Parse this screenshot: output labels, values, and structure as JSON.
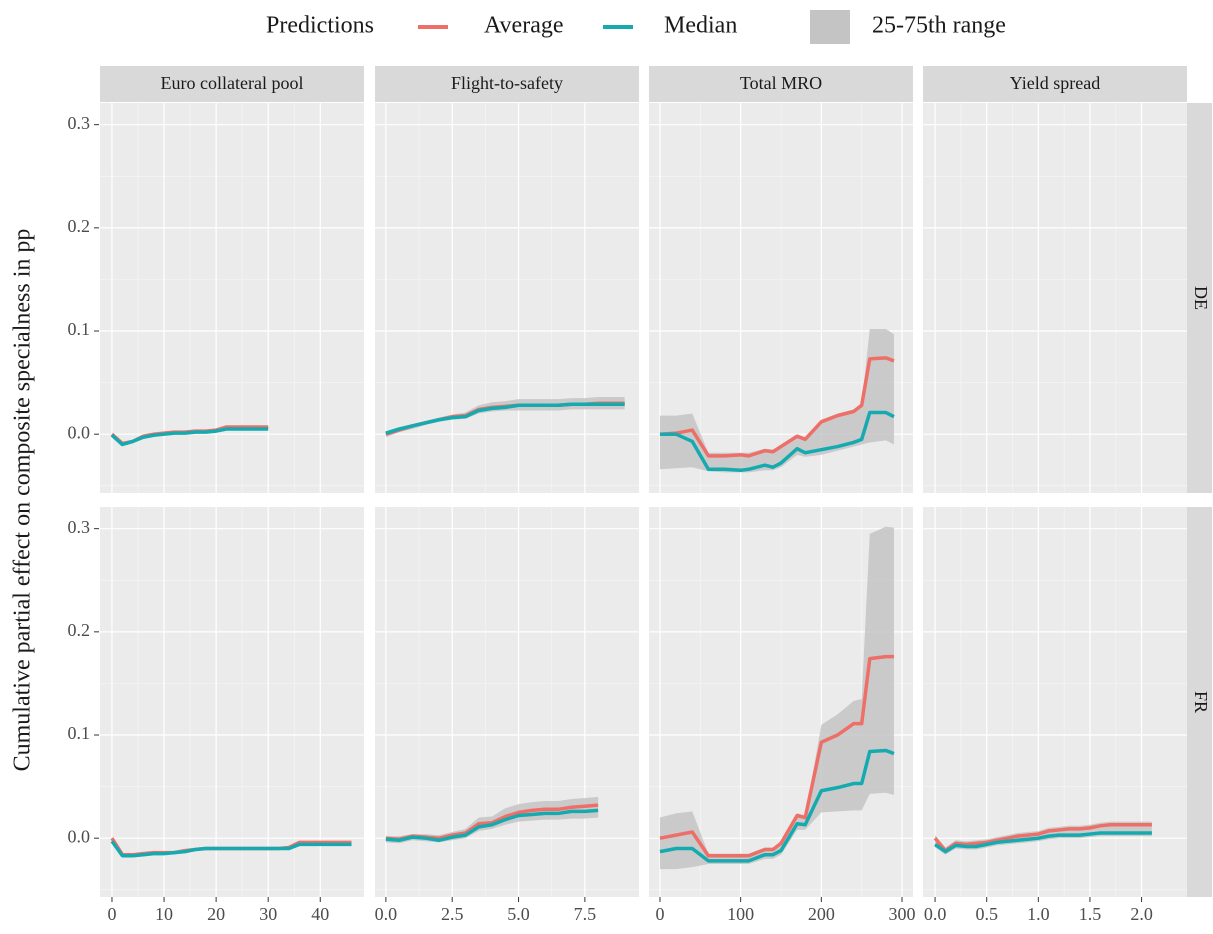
{
  "chart_data": {
    "type": "line",
    "legend_title": "Predictions",
    "legend": [
      {
        "name": "Average",
        "color": "#ee6f68"
      },
      {
        "name": "Median",
        "color": "#14aab0"
      },
      {
        "name": "25-75th range",
        "color": "#c4c4c4"
      }
    ],
    "y_label": "Cumulative partial effect on composite specialness in pp",
    "ylim": [
      -0.057,
      0.321
    ],
    "yticks": [
      {
        "value": 0,
        "label": "0.0"
      },
      0.1,
      0.2,
      0.3
    ],
    "grid": true,
    "columns": [
      {
        "title": "Euro collateral pool",
        "xlim": [
          -2.3,
          48.4
        ],
        "xticks": [
          0,
          10,
          20,
          30,
          40
        ]
      },
      {
        "title": "Flight-to-safety",
        "xlim": [
          -0.41,
          9.54
        ],
        "xticks": [
          {
            "value": 0,
            "label": "0.0"
          },
          2.5,
          {
            "value": 5,
            "label": "5.0"
          },
          7.5
        ]
      },
      {
        "title": "Total MRO",
        "xlim": [
          -13.6,
          313.6
        ],
        "xticks": [
          0,
          100,
          200,
          300
        ]
      },
      {
        "title": "Yield spread",
        "xlim": [
          -0.117,
          2.44
        ],
        "xticks": [
          {
            "value": 0,
            "label": "0.0"
          },
          0.5,
          {
            "value": 1,
            "label": "1.0"
          },
          1.5,
          {
            "value": 2,
            "label": "2.0"
          }
        ]
      }
    ],
    "rows": [
      {
        "label": "DE",
        "panels": [
          {
            "x": [
              0,
              2,
              4,
              6,
              8,
              10,
              12,
              14,
              16,
              18,
              20,
              22,
              24,
              26,
              28,
              30
            ],
            "average": [
              0.0,
              -0.009,
              -0.007,
              -0.002,
              0.0,
              0.001,
              0.002,
              0.002,
              0.003,
              0.003,
              0.004,
              0.007,
              0.007,
              0.007,
              0.007,
              0.007
            ],
            "median": [
              -0.001,
              -0.01,
              -0.007,
              -0.003,
              -0.001,
              0.0,
              0.001,
              0.001,
              0.002,
              0.002,
              0.003,
              0.005,
              0.005,
              0.005,
              0.005,
              0.005
            ],
            "lower": [
              -0.002,
              -0.011,
              -0.008,
              -0.004,
              -0.002,
              -0.001,
              0.0,
              0.0,
              0.001,
              0.001,
              0.002,
              0.004,
              0.004,
              0.004,
              0.004,
              0.004
            ],
            "upper": [
              0.001,
              -0.008,
              -0.006,
              -0.001,
              0.001,
              0.002,
              0.003,
              0.003,
              0.004,
              0.004,
              0.005,
              0.008,
              0.008,
              0.008,
              0.008,
              0.008
            ]
          },
          {
            "x": [
              0,
              0.5,
              1,
              1.5,
              2,
              2.5,
              3,
              3.5,
              4,
              4.5,
              5,
              5.5,
              6,
              6.5,
              7,
              7.5,
              8,
              8.5,
              9
            ],
            "average": [
              0.0,
              0.004,
              0.008,
              0.011,
              0.014,
              0.017,
              0.018,
              0.024,
              0.026,
              0.027,
              0.028,
              0.028,
              0.028,
              0.028,
              0.029,
              0.029,
              0.03,
              0.03,
              0.03
            ],
            "median": [
              0.001,
              0.005,
              0.008,
              0.011,
              0.014,
              0.016,
              0.017,
              0.023,
              0.025,
              0.026,
              0.028,
              0.028,
              0.028,
              0.028,
              0.029,
              0.029,
              0.029,
              0.029,
              0.029
            ],
            "lower": [
              -0.003,
              0.002,
              0.005,
              0.009,
              0.012,
              0.014,
              0.015,
              0.02,
              0.022,
              0.023,
              0.023,
              0.023,
              0.023,
              0.023,
              0.024,
              0.024,
              0.024,
              0.024,
              0.024
            ],
            "upper": [
              0.003,
              0.007,
              0.01,
              0.013,
              0.016,
              0.019,
              0.021,
              0.028,
              0.031,
              0.032,
              0.034,
              0.034,
              0.034,
              0.034,
              0.035,
              0.035,
              0.036,
              0.036,
              0.036
            ]
          },
          {
            "x": [
              0,
              20,
              40,
              60,
              80,
              100,
              110,
              130,
              140,
              150,
              170,
              180,
              200,
              220,
              240,
              250,
              260,
              280,
              290
            ],
            "average": [
              0.0,
              0.001,
              0.004,
              -0.021,
              -0.021,
              -0.02,
              -0.021,
              -0.016,
              -0.017,
              -0.012,
              -0.002,
              -0.005,
              0.012,
              0.018,
              0.022,
              0.028,
              0.073,
              0.074,
              0.071
            ],
            "median": [
              0.0,
              0.0,
              -0.007,
              -0.034,
              -0.034,
              -0.035,
              -0.034,
              -0.03,
              -0.032,
              -0.028,
              -0.014,
              -0.018,
              -0.015,
              -0.012,
              -0.008,
              -0.005,
              0.021,
              0.021,
              0.017
            ],
            "lower": [
              -0.034,
              -0.033,
              -0.032,
              -0.036,
              -0.037,
              -0.037,
              -0.037,
              -0.035,
              -0.035,
              -0.032,
              -0.02,
              -0.022,
              -0.02,
              -0.016,
              -0.012,
              -0.01,
              -0.008,
              -0.006,
              -0.01
            ],
            "upper": [
              0.018,
              0.018,
              0.02,
              -0.018,
              -0.018,
              -0.018,
              -0.018,
              -0.014,
              -0.015,
              -0.01,
              0.0,
              -0.003,
              0.014,
              0.02,
              0.024,
              0.03,
              0.102,
              0.102,
              0.097
            ]
          },
          {
            "x": [],
            "average": [],
            "median": [],
            "lower": [],
            "upper": []
          }
        ]
      },
      {
        "label": "FR",
        "panels": [
          {
            "x": [
              0,
              2,
              4,
              6,
              8,
              10,
              12,
              14,
              16,
              18,
              20,
              22,
              24,
              26,
              28,
              30,
              32,
              34,
              36,
              38,
              40,
              42,
              44,
              46
            ],
            "average": [
              0.0,
              -0.016,
              -0.016,
              -0.015,
              -0.014,
              -0.014,
              -0.014,
              -0.012,
              -0.011,
              -0.01,
              -0.01,
              -0.01,
              -0.01,
              -0.01,
              -0.01,
              -0.01,
              -0.01,
              -0.009,
              -0.004,
              -0.004,
              -0.004,
              -0.004,
              -0.004,
              -0.004
            ],
            "median": [
              -0.003,
              -0.017,
              -0.017,
              -0.016,
              -0.015,
              -0.015,
              -0.014,
              -0.013,
              -0.011,
              -0.01,
              -0.01,
              -0.01,
              -0.01,
              -0.01,
              -0.01,
              -0.01,
              -0.01,
              -0.01,
              -0.006,
              -0.006,
              -0.006,
              -0.006,
              -0.006,
              -0.006
            ],
            "lower": [
              -0.004,
              -0.018,
              -0.018,
              -0.017,
              -0.016,
              -0.016,
              -0.015,
              -0.014,
              -0.012,
              -0.011,
              -0.011,
              -0.011,
              -0.011,
              -0.011,
              -0.011,
              -0.011,
              -0.011,
              -0.011,
              -0.007,
              -0.007,
              -0.007,
              -0.007,
              -0.007,
              -0.007
            ],
            "upper": [
              0.001,
              -0.015,
              -0.015,
              -0.014,
              -0.013,
              -0.013,
              -0.013,
              -0.011,
              -0.01,
              -0.009,
              -0.009,
              -0.009,
              -0.009,
              -0.009,
              -0.009,
              -0.009,
              -0.009,
              -0.008,
              -0.003,
              -0.003,
              -0.003,
              -0.003,
              -0.003,
              -0.003
            ]
          },
          {
            "x": [
              0,
              0.5,
              1,
              1.5,
              2,
              2.5,
              3,
              3.5,
              4,
              4.5,
              5,
              5.5,
              6,
              6.5,
              7,
              7.5,
              8
            ],
            "average": [
              0.0,
              -0.001,
              0.002,
              0.001,
              0.0,
              0.003,
              0.005,
              0.014,
              0.015,
              0.021,
              0.025,
              0.027,
              0.028,
              0.028,
              0.03,
              0.031,
              0.032
            ],
            "median": [
              -0.001,
              -0.002,
              0.001,
              0.0,
              -0.002,
              0.001,
              0.003,
              0.011,
              0.013,
              0.018,
              0.022,
              0.023,
              0.024,
              0.024,
              0.026,
              0.026,
              0.027
            ],
            "lower": [
              -0.004,
              -0.005,
              -0.002,
              -0.003,
              -0.004,
              -0.002,
              0.0,
              0.007,
              0.009,
              0.013,
              0.016,
              0.017,
              0.018,
              0.018,
              0.019,
              0.019,
              0.02
            ],
            "upper": [
              0.002,
              0.002,
              0.004,
              0.004,
              0.003,
              0.006,
              0.009,
              0.02,
              0.021,
              0.029,
              0.033,
              0.035,
              0.036,
              0.036,
              0.038,
              0.039,
              0.04
            ]
          },
          {
            "x": [
              0,
              20,
              40,
              60,
              80,
              100,
              110,
              130,
              140,
              150,
              170,
              180,
              200,
              220,
              240,
              250,
              260,
              280,
              290
            ],
            "average": [
              0.0,
              0.003,
              0.006,
              -0.017,
              -0.017,
              -0.017,
              -0.017,
              -0.011,
              -0.011,
              -0.005,
              0.022,
              0.02,
              0.093,
              0.1,
              0.111,
              0.111,
              0.174,
              0.176,
              0.176
            ],
            "median": [
              -0.013,
              -0.01,
              -0.01,
              -0.022,
              -0.022,
              -0.022,
              -0.022,
              -0.016,
              -0.016,
              -0.012,
              0.014,
              0.013,
              0.046,
              0.049,
              0.053,
              0.053,
              0.084,
              0.085,
              0.082
            ],
            "lower": [
              -0.03,
              -0.03,
              -0.028,
              -0.025,
              -0.025,
              -0.025,
              -0.025,
              -0.02,
              -0.02,
              -0.016,
              0.008,
              0.008,
              0.025,
              0.026,
              0.027,
              0.027,
              0.043,
              0.044,
              0.042
            ],
            "upper": [
              0.02,
              0.024,
              0.026,
              -0.015,
              -0.015,
              -0.015,
              -0.015,
              -0.009,
              -0.009,
              -0.003,
              0.024,
              0.022,
              0.11,
              0.12,
              0.133,
              0.135,
              0.295,
              0.302,
              0.301
            ]
          },
          {
            "x": [
              0,
              0.1,
              0.2,
              0.3,
              0.4,
              0.5,
              0.6,
              0.7,
              0.8,
              0.9,
              1.0,
              1.1,
              1.2,
              1.3,
              1.4,
              1.5,
              1.6,
              1.7,
              1.8,
              1.9,
              2.0,
              2.1
            ],
            "average": [
              0.0,
              -0.012,
              -0.005,
              -0.006,
              -0.005,
              -0.004,
              -0.002,
              0.0,
              0.002,
              0.003,
              0.004,
              0.007,
              0.008,
              0.009,
              0.009,
              0.01,
              0.012,
              0.013,
              0.013,
              0.013,
              0.013,
              0.013
            ],
            "median": [
              -0.006,
              -0.013,
              -0.007,
              -0.008,
              -0.008,
              -0.006,
              -0.004,
              -0.003,
              -0.002,
              -0.001,
              0.0,
              0.002,
              0.003,
              0.003,
              0.003,
              0.004,
              0.005,
              0.005,
              0.005,
              0.005,
              0.005,
              0.005
            ],
            "lower": [
              -0.009,
              -0.016,
              -0.01,
              -0.011,
              -0.011,
              -0.009,
              -0.007,
              -0.006,
              -0.005,
              -0.004,
              -0.003,
              -0.001,
              0.0,
              0.0,
              0.0,
              0.001,
              0.002,
              0.002,
              0.002,
              0.002,
              0.002,
              0.002
            ],
            "upper": [
              0.003,
              -0.009,
              -0.002,
              -0.003,
              -0.002,
              -0.001,
              0.001,
              0.003,
              0.005,
              0.006,
              0.007,
              0.01,
              0.011,
              0.012,
              0.012,
              0.013,
              0.015,
              0.016,
              0.016,
              0.016,
              0.016,
              0.016
            ]
          }
        ]
      }
    ]
  }
}
